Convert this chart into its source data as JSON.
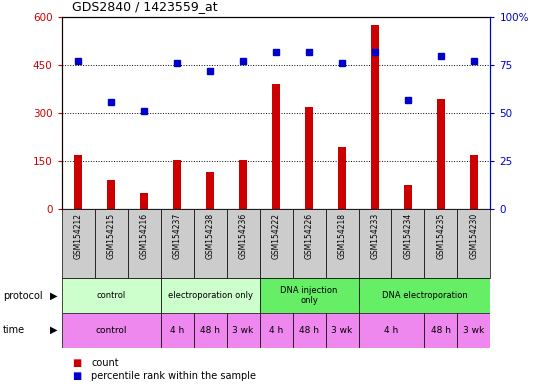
{
  "title": "GDS2840 / 1423559_at",
  "samples": [
    "GSM154212",
    "GSM154215",
    "GSM154216",
    "GSM154237",
    "GSM154238",
    "GSM154236",
    "GSM154222",
    "GSM154226",
    "GSM154218",
    "GSM154233",
    "GSM154234",
    "GSM154235",
    "GSM154230"
  ],
  "counts": [
    170,
    90,
    50,
    155,
    115,
    155,
    390,
    320,
    195,
    575,
    75,
    345,
    170
  ],
  "percentiles": [
    77,
    56,
    51,
    76,
    72,
    77,
    82,
    82,
    76,
    82,
    57,
    80,
    77
  ],
  "bar_color": "#cc0000",
  "dot_color": "#0000cc",
  "ylim_left": [
    0,
    600
  ],
  "ylim_right": [
    0,
    100
  ],
  "yticks_left": [
    0,
    150,
    300,
    450,
    600
  ],
  "yticks_right": [
    0,
    25,
    50,
    75,
    100
  ],
  "hlines": [
    150,
    300,
    450
  ],
  "protocol_groups": [
    {
      "label": "control",
      "start": 0,
      "end": 3,
      "color": "#ccffcc"
    },
    {
      "label": "electroporation only",
      "start": 3,
      "end": 6,
      "color": "#ccffcc"
    },
    {
      "label": "DNA injection\nonly",
      "start": 6,
      "end": 9,
      "color": "#66ee66"
    },
    {
      "label": "DNA electroporation",
      "start": 9,
      "end": 13,
      "color": "#66ee66"
    }
  ],
  "time_groups": [
    {
      "label": "control",
      "start": 0,
      "end": 3
    },
    {
      "label": "4 h",
      "start": 3,
      "end": 4
    },
    {
      "label": "48 h",
      "start": 4,
      "end": 5
    },
    {
      "label": "3 wk",
      "start": 5,
      "end": 6
    },
    {
      "label": "4 h",
      "start": 6,
      "end": 7
    },
    {
      "label": "48 h",
      "start": 7,
      "end": 8
    },
    {
      "label": "3 wk",
      "start": 8,
      "end": 9
    },
    {
      "label": "4 h",
      "start": 9,
      "end": 11
    },
    {
      "label": "48 h",
      "start": 11,
      "end": 12
    },
    {
      "label": "3 wk",
      "start": 12,
      "end": 13
    }
  ],
  "time_color": "#ee88ee",
  "legend_count_color": "#cc0000",
  "legend_dot_color": "#0000cc",
  "background_color": "#ffffff"
}
